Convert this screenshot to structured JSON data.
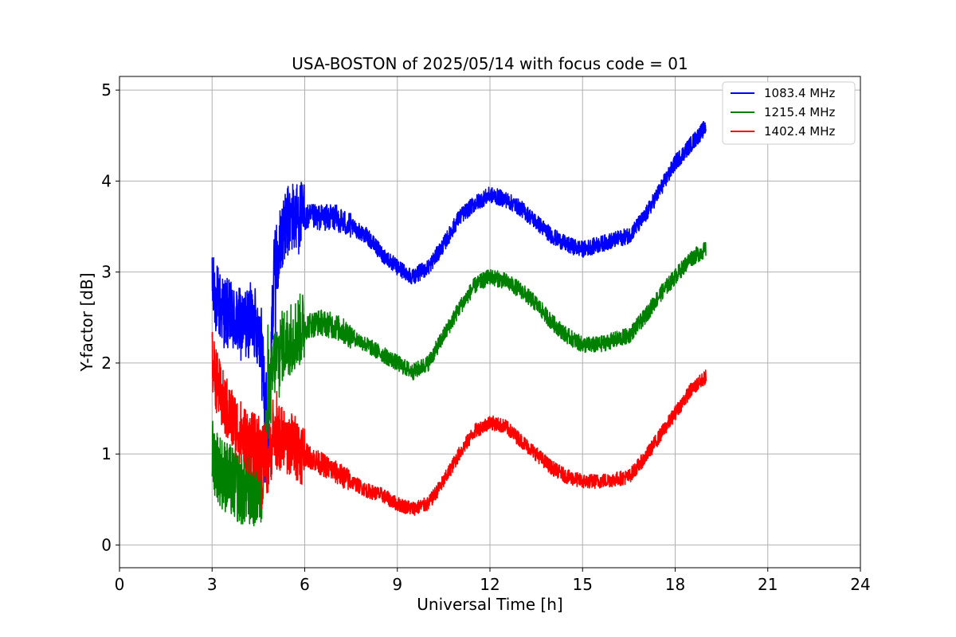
{
  "chart_data": {
    "type": "line",
    "title": "USA-BOSTON of 2025/05/14 with focus code = 01",
    "xlabel": "Universal Time [h]",
    "ylabel": "Y-factor [dB]",
    "xlim": [
      0,
      24
    ],
    "ylim": [
      -0.25,
      5.15
    ],
    "xticks": [
      0,
      3,
      6,
      9,
      12,
      15,
      18,
      21,
      24
    ],
    "xtick_labels": [
      "0",
      "3",
      "6",
      "9",
      "12",
      "15",
      "18",
      "21",
      "24"
    ],
    "yticks": [
      0,
      1,
      2,
      3,
      4,
      5
    ],
    "ytick_labels": [
      "0",
      "1",
      "2",
      "3",
      "4",
      "5"
    ],
    "grid": true,
    "legend_position": "top-right",
    "series": [
      {
        "name": "1083.4 MHz",
        "color": "#0000ff",
        "noise": 0.09,
        "x": [
          3.0,
          3.3,
          3.6,
          4.0,
          4.3,
          4.6,
          4.8,
          5.0,
          5.3,
          5.6,
          6.0,
          6.5,
          7.0,
          7.5,
          8.0,
          8.5,
          9.0,
          9.5,
          10.0,
          10.5,
          11.0,
          11.5,
          12.0,
          12.5,
          13.0,
          13.5,
          14.0,
          14.5,
          15.0,
          15.5,
          16.0,
          16.5,
          17.0,
          17.5,
          18.0,
          18.5,
          19.0
        ],
        "y": [
          2.8,
          2.6,
          2.5,
          2.4,
          2.5,
          2.3,
          1.0,
          3.0,
          3.5,
          3.6,
          3.6,
          3.6,
          3.6,
          3.5,
          3.4,
          3.2,
          3.05,
          2.95,
          3.05,
          3.3,
          3.6,
          3.75,
          3.85,
          3.8,
          3.7,
          3.55,
          3.4,
          3.3,
          3.25,
          3.3,
          3.35,
          3.4,
          3.6,
          3.9,
          4.2,
          4.4,
          4.6
        ]
      },
      {
        "name": "1215.4 MHz",
        "color": "#008000",
        "noise": 0.09,
        "x": [
          3.0,
          3.3,
          3.6,
          4.0,
          4.3,
          4.6,
          4.8,
          5.0,
          5.3,
          5.6,
          6.0,
          6.5,
          7.0,
          7.5,
          8.0,
          8.5,
          9.0,
          9.5,
          10.0,
          10.5,
          11.0,
          11.5,
          12.0,
          12.5,
          13.0,
          13.5,
          14.0,
          14.5,
          15.0,
          15.5,
          16.0,
          16.5,
          17.0,
          17.5,
          18.0,
          18.5,
          19.0
        ],
        "y": [
          1.0,
          0.8,
          0.7,
          0.6,
          0.6,
          0.6,
          1.4,
          2.0,
          2.2,
          2.3,
          2.4,
          2.45,
          2.4,
          2.3,
          2.2,
          2.1,
          2.0,
          1.9,
          2.0,
          2.3,
          2.6,
          2.85,
          2.95,
          2.9,
          2.8,
          2.65,
          2.45,
          2.3,
          2.2,
          2.2,
          2.25,
          2.3,
          2.5,
          2.75,
          2.95,
          3.15,
          3.25
        ]
      },
      {
        "name": "1402.4 MHz",
        "color": "#ff0000",
        "noise": 0.08,
        "x": [
          3.0,
          3.3,
          3.6,
          4.0,
          4.3,
          4.6,
          4.8,
          5.0,
          5.3,
          5.6,
          6.0,
          6.5,
          7.0,
          7.5,
          8.0,
          8.5,
          9.0,
          9.5,
          10.0,
          10.5,
          11.0,
          11.5,
          12.0,
          12.5,
          13.0,
          13.5,
          14.0,
          14.5,
          15.0,
          15.5,
          16.0,
          16.5,
          17.0,
          17.5,
          18.0,
          18.5,
          19.0
        ],
        "y": [
          2.0,
          1.6,
          1.4,
          1.2,
          1.1,
          1.05,
          0.9,
          1.2,
          1.15,
          1.1,
          1.0,
          0.9,
          0.8,
          0.7,
          0.6,
          0.55,
          0.45,
          0.4,
          0.45,
          0.7,
          1.0,
          1.25,
          1.35,
          1.3,
          1.15,
          1.0,
          0.85,
          0.75,
          0.7,
          0.7,
          0.72,
          0.75,
          0.95,
          1.2,
          1.45,
          1.7,
          1.85
        ]
      }
    ]
  }
}
